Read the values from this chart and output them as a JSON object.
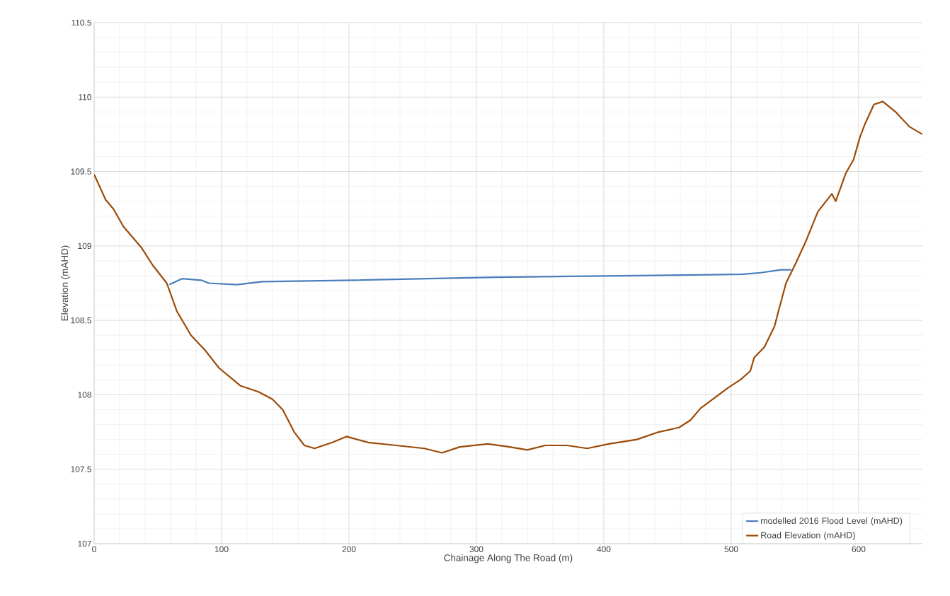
{
  "chart_data": {
    "type": "line",
    "xlabel": "Chainage Along The Road (m)",
    "ylabel": "Elevation (mAHD)",
    "xlim": [
      0,
      650
    ],
    "ylim": [
      107,
      110.5
    ],
    "xticks": [
      0,
      100,
      200,
      300,
      400,
      500,
      600
    ],
    "yticks": [
      107,
      107.5,
      108,
      108.5,
      109,
      109.5,
      110,
      110.5
    ],
    "grid": true,
    "legend": "bottom right",
    "marker": "none",
    "line_style": "solid",
    "series": [
      {
        "name": "modelled 2016 Flood Level (mAHD)",
        "color": "#4a7ebb",
        "x": [
          59,
          69,
          84,
          90,
          112,
          132,
          204,
          315,
          426,
          509,
          523,
          539,
          547
        ],
        "values": [
          108.74,
          108.78,
          108.77,
          108.75,
          108.74,
          108.76,
          108.77,
          108.79,
          108.8,
          108.81,
          108.82,
          108.84,
          108.84
        ]
      },
      {
        "name": "Road Elevation (mAHD)",
        "color": "#9c4a06",
        "x": [
          0,
          9,
          15,
          23,
          37,
          46,
          57,
          65,
          76,
          87,
          98,
          115,
          129,
          140,
          148,
          157,
          165,
          173,
          187,
          198,
          215,
          237,
          259,
          273,
          287,
          309,
          326,
          340,
          354,
          371,
          387,
          404,
          426,
          443,
          459,
          468,
          476,
          487,
          498,
          507,
          515,
          518,
          526,
          534,
          537,
          543,
          551,
          559,
          568,
          579,
          582,
          590,
          596,
          601,
          605,
          612,
          619,
          629,
          640,
          650
        ],
        "values": [
          109.48,
          109.31,
          109.25,
          109.13,
          108.99,
          108.87,
          108.75,
          108.56,
          108.4,
          108.3,
          108.18,
          108.06,
          108.02,
          107.97,
          107.9,
          107.75,
          107.66,
          107.64,
          107.68,
          107.72,
          107.68,
          107.66,
          107.64,
          107.61,
          107.65,
          107.67,
          107.65,
          107.63,
          107.66,
          107.66,
          107.64,
          107.67,
          107.7,
          107.75,
          107.78,
          107.83,
          107.91,
          107.98,
          108.05,
          108.1,
          108.16,
          108.25,
          108.32,
          108.46,
          108.56,
          108.75,
          108.89,
          109.04,
          109.23,
          109.35,
          109.3,
          109.49,
          109.58,
          109.73,
          109.82,
          109.95,
          109.97,
          109.9,
          109.8,
          109.75
        ]
      }
    ]
  }
}
